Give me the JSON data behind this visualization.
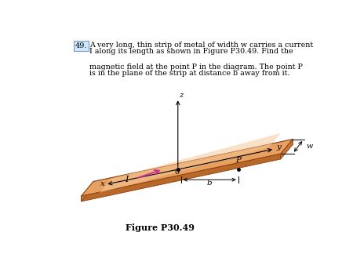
{
  "background_color": "#ffffff",
  "problem_text_line1": "A very long, thin strip of metal of width w carries a current",
  "problem_text_line2": "I along its length as shown in Figure P30.49. Find the",
  "problem_text_line3": "magnetic field at the point P in the diagram. The point P",
  "problem_text_line4": "is in the plane of the strip at distance b away from it.",
  "problem_number": "49.",
  "strip_color_main": "#E8A060",
  "strip_color_light": "#F5C898",
  "strip_color_dark": "#C07838",
  "strip_color_side": "#B86828",
  "strip_color_bottom": "#A05820",
  "arrow_color": "#CC3399",
  "axis_color": "#000000",
  "text_color": "#000000",
  "label_box_facecolor": "#d0e8ff",
  "label_box_edgecolor": "#7799bb",
  "fig_caption": "Figure P30.49"
}
